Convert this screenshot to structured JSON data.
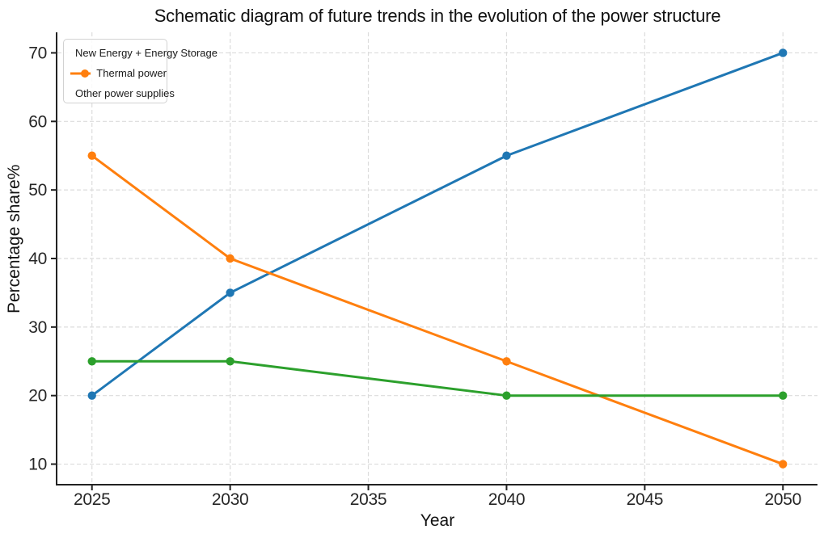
{
  "chart_data": {
    "type": "line",
    "title": "Schematic diagram of future trends in the evolution of the power structure",
    "xlabel": "Year",
    "ylabel": "Percentage share%",
    "x": [
      2025,
      2030,
      2040,
      2050
    ],
    "series": [
      {
        "name": "New Energy + Energy Storage",
        "color": "#1f77b4",
        "values": [
          20,
          35,
          55,
          70
        ]
      },
      {
        "name": "Thermal power",
        "color": "#ff7f0e",
        "values": [
          55,
          40,
          25,
          10
        ]
      },
      {
        "name": "Other power supplies",
        "color": "#2ca02c",
        "values": [
          25,
          25,
          20,
          20
        ]
      }
    ],
    "xticks": [
      2025,
      2030,
      2035,
      2040,
      2045,
      2050
    ],
    "yticks": [
      10,
      20,
      30,
      40,
      50,
      60,
      70
    ],
    "xlim": [
      2023.75,
      2051.25
    ],
    "ylim": [
      7,
      73
    ],
    "grid": true,
    "grid_style": "dashed",
    "grid_color": "#dcdcdc",
    "axis_color": "#222222",
    "marker": "circle",
    "legend_position": "upper-left"
  }
}
